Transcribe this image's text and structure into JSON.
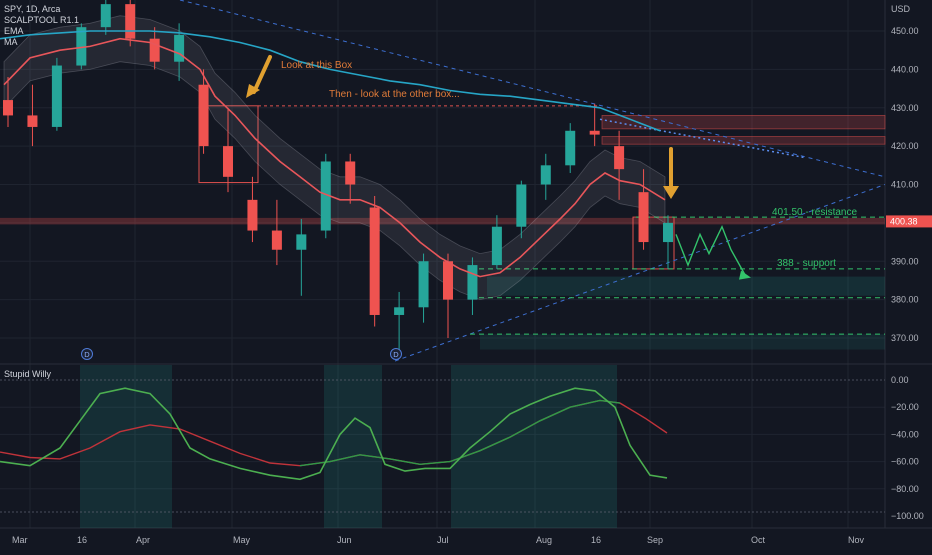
{
  "symbol": {
    "title": "SPY, 1D, Arca",
    "indicators": [
      "SCALPTOOL R1.1",
      "EMA",
      "MA"
    ]
  },
  "oscillator": {
    "title": "Stupid Willy",
    "ticks": [
      "0.00",
      "−20.00",
      "−40.00",
      "−60.00",
      "−80.00",
      "−100.00"
    ]
  },
  "axis": {
    "currency": "USD",
    "price_ticks": [
      "450.00",
      "440.00",
      "430.00",
      "420.00",
      "410.00",
      "390.00",
      "380.00",
      "370.00"
    ],
    "price_values": [
      450,
      440,
      430,
      420,
      410,
      390,
      380,
      370
    ],
    "time_labels": [
      "Mar",
      "16",
      "Apr",
      "May",
      "Jun",
      "Jul",
      "Aug",
      "16",
      "Sep",
      "Oct",
      "Nov"
    ],
    "price_tag": "400.38",
    "price_tag_value": 400.38
  },
  "annotations": {
    "look_box": "Look at this Box",
    "other_box": "Then - look at the other box...",
    "resistance": "401.50 - resistance",
    "support": "388 - support",
    "dividend": "D"
  },
  "colors": {
    "bg": "#131722",
    "up": "#26a69a",
    "down": "#ef5350",
    "ema": "#e8565a",
    "ma": "#26a5c6",
    "annotation": "#e07b39",
    "arrow": "#e0a030",
    "green": "#33c36b",
    "grid": "#1f2430",
    "axis_text": "#b2b5be"
  },
  "chart_data": {
    "type": "candlestick",
    "title": "SPY, 1D, Arca",
    "ylim": [
      363,
      460
    ],
    "y_ticks": [
      370,
      380,
      390,
      400,
      410,
      420,
      430,
      440,
      450
    ],
    "x_labels": [
      "Mar",
      "16",
      "Apr",
      "May",
      "Jun",
      "Jul",
      "Aug",
      "16",
      "Sep",
      "Oct",
      "Nov"
    ],
    "levels": {
      "resistance": 401.5,
      "support": 388,
      "other": [
        380.5,
        371
      ]
    },
    "series": [
      {
        "name": "EMA",
        "values": [
          [
            4,
            436
          ],
          [
            30,
            443
          ],
          [
            60,
            445
          ],
          [
            90,
            446
          ],
          [
            120,
            448
          ],
          [
            150,
            447
          ],
          [
            180,
            444
          ],
          [
            200,
            440
          ],
          [
            215,
            433
          ],
          [
            235,
            428
          ],
          [
            255,
            422
          ],
          [
            280,
            416
          ],
          [
            300,
            412
          ],
          [
            320,
            408
          ],
          [
            340,
            406
          ],
          [
            360,
            406
          ],
          [
            380,
            404
          ],
          [
            400,
            400
          ],
          [
            420,
            395
          ],
          [
            440,
            391
          ],
          [
            460,
            388
          ],
          [
            480,
            386
          ],
          [
            500,
            387
          ],
          [
            520,
            391
          ],
          [
            540,
            396
          ],
          [
            560,
            401
          ],
          [
            575,
            405
          ],
          [
            590,
            410
          ],
          [
            605,
            413
          ],
          [
            620,
            411
          ],
          [
            640,
            410
          ],
          [
            665,
            406
          ]
        ]
      },
      {
        "name": "MA",
        "values": [
          [
            0,
            448
          ],
          [
            30,
            449
          ],
          [
            60,
            449.5
          ],
          [
            90,
            450
          ],
          [
            120,
            450
          ],
          [
            150,
            450
          ],
          [
            180,
            449.5
          ],
          [
            210,
            448.5
          ],
          [
            240,
            447
          ],
          [
            270,
            445
          ],
          [
            300,
            442
          ],
          [
            330,
            440
          ],
          [
            360,
            438.5
          ],
          [
            390,
            437
          ],
          [
            420,
            436
          ],
          [
            450,
            434.5
          ],
          [
            480,
            433.5
          ],
          [
            510,
            433
          ],
          [
            540,
            432
          ],
          [
            570,
            431
          ],
          [
            600,
            430
          ],
          [
            620,
            428
          ],
          [
            640,
            426
          ],
          [
            660,
            424
          ]
        ]
      }
    ],
    "candles": [
      {
        "date": "2022-03-01",
        "o": 432,
        "h": 438,
        "l": 425,
        "c": 428
      },
      {
        "date": "2022-03-08",
        "o": 428,
        "h": 436,
        "l": 420,
        "c": 425
      },
      {
        "date": "2022-03-15",
        "o": 425,
        "h": 443,
        "l": 424,
        "c": 441
      },
      {
        "date": "2022-03-22",
        "o": 441,
        "h": 452,
        "l": 440,
        "c": 451
      },
      {
        "date": "2022-03-29",
        "o": 451,
        "h": 460,
        "l": 449,
        "c": 457
      },
      {
        "date": "2022-04-05",
        "o": 457,
        "h": 459,
        "l": 446,
        "c": 448
      },
      {
        "date": "2022-04-12",
        "o": 448,
        "h": 451,
        "l": 440,
        "c": 442
      },
      {
        "date": "2022-04-19",
        "o": 442,
        "h": 452,
        "l": 437,
        "c": 449
      },
      {
        "date": "2022-04-26",
        "o": 436,
        "h": 440,
        "l": 418,
        "c": 420
      },
      {
        "date": "2022-05-03",
        "o": 420,
        "h": 430,
        "l": 408,
        "c": 412
      },
      {
        "date": "2022-05-10",
        "o": 406,
        "h": 412,
        "l": 395,
        "c": 398
      },
      {
        "date": "2022-05-17",
        "o": 398,
        "h": 406,
        "l": 389,
        "c": 393
      },
      {
        "date": "2022-05-24",
        "o": 393,
        "h": 401,
        "l": 381,
        "c": 397
      },
      {
        "date": "2022-05-31",
        "o": 398,
        "h": 418,
        "l": 396,
        "c": 416
      },
      {
        "date": "2022-06-07",
        "o": 416,
        "h": 418,
        "l": 405,
        "c": 410
      },
      {
        "date": "2022-06-14",
        "o": 404,
        "h": 407,
        "l": 373,
        "c": 376
      },
      {
        "date": "2022-06-21",
        "o": 376,
        "h": 382,
        "l": 366,
        "c": 378
      },
      {
        "date": "2022-06-28",
        "o": 378,
        "h": 392,
        "l": 374,
        "c": 390
      },
      {
        "date": "2022-07-05",
        "o": 390,
        "h": 392,
        "l": 370,
        "c": 380
      },
      {
        "date": "2022-07-12",
        "o": 380,
        "h": 391,
        "l": 376,
        "c": 389
      },
      {
        "date": "2022-07-19",
        "o": 389,
        "h": 402,
        "l": 388,
        "c": 399
      },
      {
        "date": "2022-07-26",
        "o": 399,
        "h": 411,
        "l": 396,
        "c": 410
      },
      {
        "date": "2022-08-02",
        "o": 410,
        "h": 418,
        "l": 406,
        "c": 415
      },
      {
        "date": "2022-08-09",
        "o": 415,
        "h": 426,
        "l": 413,
        "c": 424
      },
      {
        "date": "2022-08-16",
        "o": 424,
        "h": 431,
        "l": 420,
        "c": 423
      },
      {
        "date": "2022-08-23",
        "o": 420,
        "h": 424,
        "l": 406,
        "c": 414
      },
      {
        "date": "2022-08-30",
        "o": 408,
        "h": 414,
        "l": 393,
        "c": 395
      },
      {
        "date": "2022-09-06",
        "o": 395,
        "h": 402,
        "l": 388,
        "c": 400
      }
    ],
    "oscillator": {
      "name": "Stupid Willy",
      "ylim": [
        -105,
        3
      ],
      "fast": [
        [
          0,
          -60
        ],
        [
          30,
          -63
        ],
        [
          60,
          -50
        ],
        [
          80,
          -30
        ],
        [
          100,
          -10
        ],
        [
          125,
          -6
        ],
        [
          150,
          -10
        ],
        [
          170,
          -25
        ],
        [
          190,
          -50
        ],
        [
          210,
          -58
        ],
        [
          240,
          -65
        ],
        [
          270,
          -70
        ],
        [
          300,
          -73
        ],
        [
          320,
          -68
        ],
        [
          340,
          -40
        ],
        [
          355,
          -28
        ],
        [
          370,
          -35
        ],
        [
          385,
          -62
        ],
        [
          405,
          -67
        ],
        [
          425,
          -65
        ],
        [
          450,
          -65
        ],
        [
          470,
          -50
        ],
        [
          490,
          -38
        ],
        [
          510,
          -25
        ],
        [
          530,
          -18
        ],
        [
          550,
          -12
        ],
        [
          575,
          -6
        ],
        [
          595,
          -8
        ],
        [
          615,
          -20
        ],
        [
          630,
          -48
        ],
        [
          650,
          -70
        ],
        [
          667,
          -72
        ]
      ],
      "slow": [
        [
          0,
          -53
        ],
        [
          30,
          -57
        ],
        [
          60,
          -58
        ],
        [
          90,
          -50
        ],
        [
          120,
          -38
        ],
        [
          150,
          -33
        ],
        [
          180,
          -36
        ],
        [
          210,
          -45
        ],
        [
          240,
          -54
        ],
        [
          270,
          -61
        ],
        [
          300,
          -63
        ],
        [
          330,
          -60
        ],
        [
          360,
          -55
        ],
        [
          390,
          -58
        ],
        [
          420,
          -62
        ],
        [
          450,
          -60
        ],
        [
          480,
          -52
        ],
        [
          510,
          -42
        ],
        [
          540,
          -30
        ],
        [
          570,
          -20
        ],
        [
          600,
          -15
        ],
        [
          620,
          -17
        ],
        [
          645,
          -28
        ],
        [
          667,
          -39
        ]
      ]
    }
  }
}
